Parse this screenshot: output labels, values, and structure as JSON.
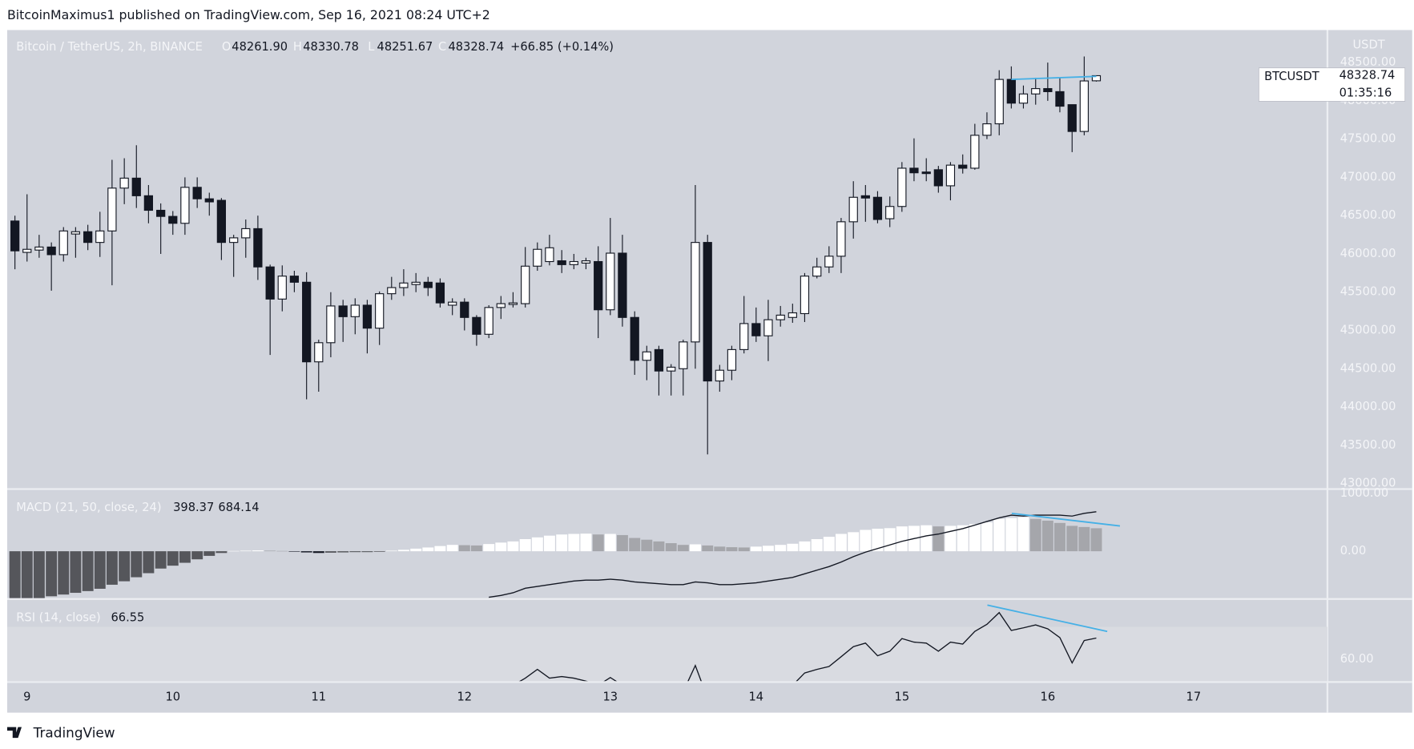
{
  "header": {
    "published": "BitcoinMaximus1 published on TradingView.com, Sep 16, 2021 08:24 UTC+2",
    "brand": "TradingView"
  },
  "chart_data": [
    {
      "type": "candlestick",
      "title": "Bitcoin / TetherUS, 2h, BINANCE",
      "quote": {
        "labels": [
          "O",
          "H",
          "L",
          "C"
        ],
        "values": [
          48261.9,
          48330.78,
          48251.67,
          48328.74
        ],
        "value_labels": [
          "48261.90",
          "48330.78",
          "48251.67",
          "48328.74"
        ],
        "change": "+66.85 (+0.14%)"
      },
      "symbol": "BTCUSDT",
      "last_price": 48328.74,
      "countdown": "01:35:16",
      "y_unit": "USDT",
      "up_color": "#ffffff",
      "down_color": "#131722",
      "grid": false,
      "x": [
        8.917,
        9,
        9.083,
        9.167,
        9.25,
        9.333,
        9.417,
        9.5,
        9.583,
        9.667,
        9.75,
        9.833,
        9.917,
        10,
        10.083,
        10.167,
        10.25,
        10.333,
        10.417,
        10.5,
        10.583,
        10.667,
        10.75,
        10.833,
        10.917,
        11,
        11.083,
        11.167,
        11.25,
        11.333,
        11.417,
        11.5,
        11.583,
        11.667,
        11.75,
        11.833,
        11.917,
        12,
        12.083,
        12.167,
        12.25,
        12.333,
        12.417,
        12.5,
        12.583,
        12.667,
        12.75,
        12.833,
        12.917,
        13,
        13.083,
        13.167,
        13.25,
        13.333,
        13.417,
        13.5,
        13.583,
        13.667,
        13.75,
        13.833,
        13.917,
        14,
        14.083,
        14.167,
        14.25,
        14.333,
        14.417,
        14.5,
        14.583,
        14.667,
        14.75,
        14.833,
        14.917,
        15,
        15.083,
        15.167,
        15.25,
        15.333,
        15.417,
        15.5,
        15.583,
        15.667,
        15.75,
        15.833,
        15.917,
        16,
        16.083,
        16.167,
        16.25,
        16.333
      ],
      "open": [
        46430,
        46020,
        46050,
        46090,
        45990,
        46260,
        46290,
        46150,
        46300,
        46860,
        46990,
        46760,
        46570,
        46490,
        46400,
        46870,
        46720,
        46700,
        46150,
        46210,
        46330,
        45830,
        45410,
        45710,
        45630,
        44590,
        44840,
        45320,
        45180,
        45330,
        45030,
        45480,
        45560,
        45600,
        45630,
        45620,
        45330,
        45370,
        45170,
        44950,
        45300,
        45340,
        45350,
        45840,
        45900,
        45910,
        45860,
        45880,
        45900,
        45270,
        46010,
        45170,
        44610,
        44750,
        44470,
        44500,
        44850,
        46150,
        44340,
        44480,
        44750,
        45090,
        44930,
        45140,
        45170,
        45220,
        45710,
        45830,
        45970,
        46420,
        46760,
        46740,
        46460,
        46620,
        47120,
        47070,
        47100,
        46890,
        47160,
        47120,
        47550,
        47700,
        48280,
        47970,
        48090,
        48160,
        48120,
        47950,
        47600,
        48261.9
      ],
      "high": [
        46500,
        46780,
        46250,
        46150,
        46350,
        46350,
        46380,
        46550,
        47230,
        47250,
        47420,
        46900,
        46660,
        46560,
        47000,
        47000,
        46800,
        46730,
        46250,
        46450,
        46500,
        45860,
        45850,
        45780,
        45760,
        44880,
        45500,
        45400,
        45420,
        45400,
        45510,
        45700,
        45800,
        45750,
        45700,
        45680,
        45420,
        45420,
        45200,
        45330,
        45450,
        45500,
        46090,
        46150,
        46250,
        46050,
        46000,
        45950,
        46100,
        46470,
        46250,
        45250,
        44800,
        44800,
        44560,
        44880,
        46900,
        46250,
        44550,
        44800,
        45450,
        45300,
        45400,
        45320,
        45350,
        45750,
        45950,
        46100,
        46470,
        46950,
        46900,
        46820,
        46750,
        47200,
        47510,
        47250,
        47150,
        47200,
        47300,
        47700,
        47850,
        48400,
        48450,
        48200,
        48300,
        48500,
        48300,
        47950,
        48580,
        48330.78
      ],
      "low": [
        45800,
        45900,
        45950,
        45520,
        45900,
        45950,
        46050,
        45960,
        45590,
        46650,
        46600,
        46400,
        46000,
        46250,
        46250,
        46600,
        46500,
        45920,
        45700,
        45950,
        45660,
        44680,
        45250,
        45500,
        44100,
        44200,
        44650,
        44850,
        44950,
        44700,
        44810,
        45400,
        45450,
        45500,
        45450,
        45300,
        45200,
        45000,
        44800,
        44900,
        45150,
        45300,
        45300,
        45780,
        45850,
        45750,
        45800,
        45800,
        44900,
        45200,
        45050,
        44420,
        44350,
        44150,
        44150,
        44150,
        44500,
        43380,
        44200,
        44350,
        44700,
        44850,
        44600,
        45050,
        45100,
        45110,
        45680,
        45750,
        45750,
        46200,
        46420,
        46400,
        46350,
        46550,
        46950,
        46950,
        46800,
        46700,
        47050,
        47100,
        47500,
        47550,
        47900,
        47900,
        47950,
        48000,
        47850,
        47330,
        47550,
        48251.67
      ],
      "close": [
        46040,
        46060,
        46090,
        45990,
        46300,
        46290,
        46150,
        46300,
        46860,
        46990,
        46760,
        46570,
        46490,
        46400,
        46870,
        46720,
        46680,
        46150,
        46210,
        46330,
        45830,
        45410,
        45710,
        45630,
        44590,
        44840,
        45320,
        45180,
        45330,
        45030,
        45480,
        45560,
        45620,
        45630,
        45560,
        45360,
        45370,
        45170,
        44950,
        45300,
        45350,
        45360,
        45840,
        46060,
        46080,
        45860,
        45900,
        45910,
        45270,
        46010,
        45170,
        44610,
        44720,
        44470,
        44520,
        44850,
        46150,
        44340,
        44480,
        44750,
        45090,
        44930,
        45140,
        45200,
        45230,
        45710,
        45830,
        45970,
        46420,
        46740,
        46730,
        46450,
        46620,
        47120,
        47060,
        47050,
        46890,
        47160,
        47120,
        47550,
        47700,
        48280,
        47970,
        48090,
        48160,
        48120,
        47930,
        47600,
        48260,
        48328.74
      ],
      "xlim": [
        8.864,
        17.918
      ],
      "xticks": [
        9,
        10,
        11,
        12,
        13,
        14,
        15,
        16,
        17
      ],
      "ylim": [
        42940,
        48925
      ],
      "yticks": [
        {
          "value": 48500,
          "label": "48500.00"
        },
        {
          "value": 48000,
          "label": "48000.00"
        },
        {
          "value": 47500,
          "label": "47500.00"
        },
        {
          "value": 47000,
          "label": "47000.00"
        },
        {
          "value": 46500,
          "label": "46500.00"
        },
        {
          "value": 46000,
          "label": "46000.00"
        },
        {
          "value": 45500,
          "label": "45500.00"
        },
        {
          "value": 45000,
          "label": "45000.00"
        },
        {
          "value": 44500,
          "label": "44500.00"
        },
        {
          "value": 44000,
          "label": "44000.00"
        },
        {
          "value": 43500,
          "label": "43500.00"
        },
        {
          "value": 43000,
          "label": "43000.00"
        }
      ],
      "trendlines": [
        {
          "x": [
            15.75,
            16.333
          ],
          "values": [
            48280,
            48320
          ],
          "color": "#45b0e6"
        }
      ]
    },
    {
      "type": "macd",
      "title": "MACD (21, 50, close, 24)",
      "histogram_colors": [
        "#ffffff",
        "#a5a6ab",
        "#55565b",
        "#131722"
      ],
      "histogram": [
        -850,
        -840,
        -820,
        -780,
        -750,
        -720,
        -690,
        -650,
        -580,
        -520,
        -450,
        -380,
        -300,
        -250,
        -200,
        -140,
        -80,
        -30,
        5,
        10,
        15,
        10,
        5,
        -5,
        -20,
        -30,
        -25,
        -20,
        -15,
        -15,
        -10,
        10,
        25,
        45,
        65,
        90,
        110,
        105,
        100,
        125,
        150,
        170,
        210,
        240,
        270,
        290,
        300,
        305,
        290,
        300,
        280,
        230,
        200,
        170,
        140,
        110,
        120,
        100,
        80,
        70,
        65,
        80,
        95,
        110,
        130,
        170,
        210,
        250,
        300,
        330,
        370,
        390,
        400,
        430,
        440,
        450,
        430,
        440,
        450,
        470,
        500,
        560,
        575,
        590,
        560,
        530,
        490,
        440,
        420,
        398.37
      ],
      "macd": {
        "color": "#131722",
        "values": [
          null,
          null,
          null,
          null,
          null,
          null,
          null,
          null,
          null,
          null,
          null,
          null,
          null,
          null,
          null,
          null,
          null,
          null,
          null,
          null,
          null,
          null,
          null,
          null,
          null,
          null,
          null,
          null,
          null,
          null,
          null,
          null,
          null,
          null,
          null,
          null,
          null,
          null,
          null,
          -797,
          -766,
          -719,
          -641,
          -609,
          -578,
          -547,
          -516,
          -500,
          -500,
          -484,
          -500,
          -531,
          -547,
          -563,
          -578,
          -578,
          -531,
          -547,
          -578,
          -578,
          -563,
          -547,
          -516,
          -484,
          -453,
          -391,
          -328,
          -266,
          -188,
          -94,
          -16,
          47,
          109,
          172,
          219,
          266,
          297,
          344,
          391,
          453,
          516,
          578,
          625,
          609,
          625,
          625,
          625,
          609,
          656,
          684.14
        ]
      },
      "ylim": [
        -812,
        1062
      ],
      "yticks": [
        {
          "value": 1000,
          "label": "1000.00"
        },
        {
          "value": 0,
          "label": "0.00"
        }
      ],
      "trendlines": [
        {
          "x": [
            15.753,
            16.495
          ],
          "values": [
            656,
            438
          ],
          "color": "#45b0e6"
        }
      ]
    },
    {
      "type": "rsi",
      "title": "RSI (14, close)",
      "color": "#131722",
      "band": [
        30,
        70
      ],
      "band_color": "#d9dbe1",
      "values": [
        null,
        null,
        null,
        null,
        null,
        null,
        null,
        null,
        null,
        null,
        null,
        null,
        null,
        null,
        null,
        null,
        null,
        null,
        null,
        null,
        null,
        null,
        null,
        null,
        null,
        null,
        null,
        null,
        null,
        null,
        null,
        null,
        null,
        null,
        null,
        null,
        null,
        null,
        null,
        null,
        null,
        52,
        54.2,
        56.9,
        54.2,
        54.7,
        54.2,
        53.3,
        52,
        54.4,
        52,
        null,
        null,
        null,
        null,
        50,
        58.1,
        48,
        null,
        null,
        null,
        null,
        null,
        null,
        52,
        55.8,
        56.9,
        57.8,
        60.8,
        63.9,
        65,
        61.1,
        62.5,
        66.4,
        65.3,
        65,
        62.5,
        65.3,
        64.7,
        68.6,
        70.8,
        74.4,
        68.9,
        69.7,
        70.6,
        69.4,
        66.7,
        58.9,
        65.8,
        66.55
      ],
      "ylim": [
        53.3,
        78.3
      ],
      "yticks": [
        {
          "value": 60,
          "label": "60.00"
        }
      ],
      "trendlines": [
        {
          "x": [
            15.586,
            16.408
          ],
          "values": [
            76.7,
            68.6
          ],
          "color": "#45b0e6"
        }
      ]
    }
  ]
}
